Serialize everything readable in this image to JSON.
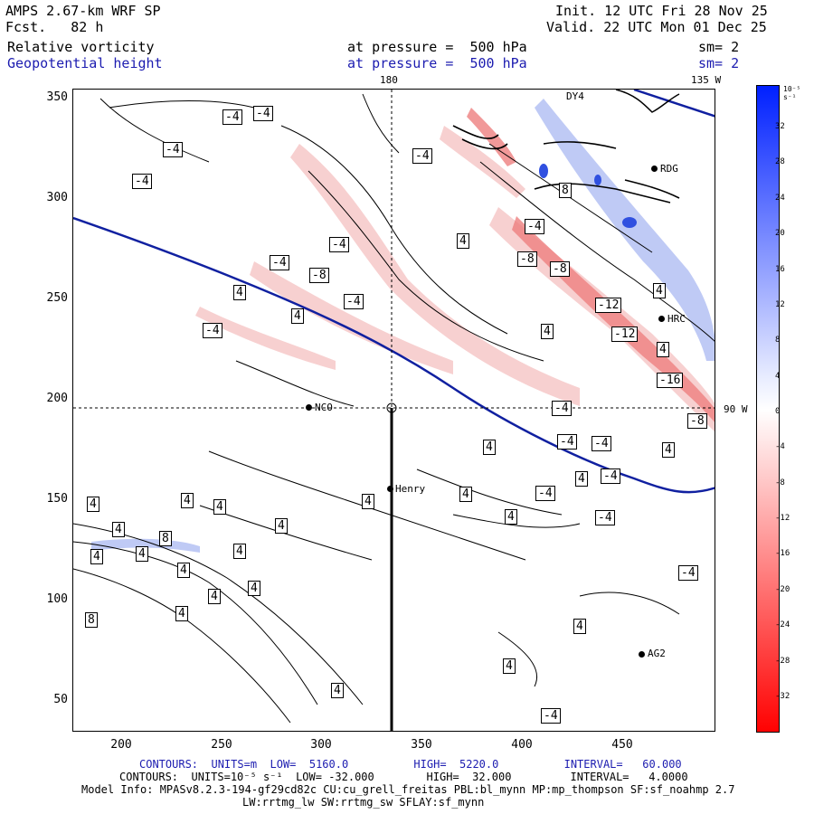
{
  "header": {
    "model": "AMPS 2.67-km WRF SP",
    "forecast_label": "Fcst.",
    "forecast_hours": "82 h",
    "init": "Init. 12 UTC Fri 28 Nov 25",
    "valid": "Valid. 22 UTC Mon 01 Dec 25",
    "field1": "Relative vorticity",
    "field1_level": "at pressure =  500 hPa",
    "field1_sm": "sm= 2",
    "field2": "Geopotential height",
    "field2_level": "at pressure =  500 hPa",
    "field2_sm": "sm= 2"
  },
  "map_labels": {
    "lon_180": "180",
    "lon_135w": "135 W",
    "lon_90w": "90 W"
  },
  "axes": {
    "y_ticks": [
      "350",
      "300",
      "250",
      "200",
      "150",
      "100",
      "50"
    ],
    "x_ticks": [
      "200",
      "250",
      "300",
      "350",
      "400",
      "450"
    ]
  },
  "stations": [
    "NCO",
    "Henry",
    "AG2",
    "HRC",
    "RDG",
    "DY4"
  ],
  "contour_labels": [
    "-4",
    "-4",
    "-4",
    "-4",
    "-4",
    "-4",
    "-4",
    "-8",
    "-4",
    "-4",
    "-4",
    "-8",
    "-8",
    "-12",
    "-12",
    "-16",
    "-8",
    "-4",
    "-4",
    "-4",
    "-4",
    "-4",
    "-4",
    "-4",
    "4",
    "4",
    "4",
    "4",
    "4",
    "4",
    "4",
    "4",
    "4",
    "4",
    "4",
    "4",
    "4",
    "4",
    "4",
    "4",
    "4",
    "4",
    "4",
    "4",
    "4",
    "4",
    "4",
    "8",
    "8",
    "8",
    "4",
    "4",
    "4",
    "4",
    "-4"
  ],
  "colorbar": {
    "unit": "10⁻⁵ s⁻¹",
    "ticks": [
      "32",
      "28",
      "24",
      "20",
      "16",
      "12",
      "8",
      "4",
      "0",
      "-4",
      "-8",
      "-12",
      "-16",
      "-20",
      "-24",
      "-28",
      "-32"
    ]
  },
  "footer": {
    "line1": "CONTOURS:  UNITS=m  LOW=  5160.0          HIGH=  5220.0          INTERVAL=   60.000",
    "line2": "CONTOURS:  UNITS=10⁻⁵ s⁻¹  LOW= -32.000        HIGH=  32.000         INTERVAL=   4.0000",
    "line3": "Model Info: MPASv8.2.3-194-gf29cd82c CU:cu_grell_freitas PBL:bl_mynn MP:mp_thompson SF:sf_noahmp 2.7",
    "line4": "LW:rrtmg_lw SW:rrtmg_sw SFLAY:sf_mynn"
  },
  "colors": {
    "height_contour": "#1020a0",
    "positive_vort": "#e04040",
    "negative_vort": "#2040e0"
  }
}
